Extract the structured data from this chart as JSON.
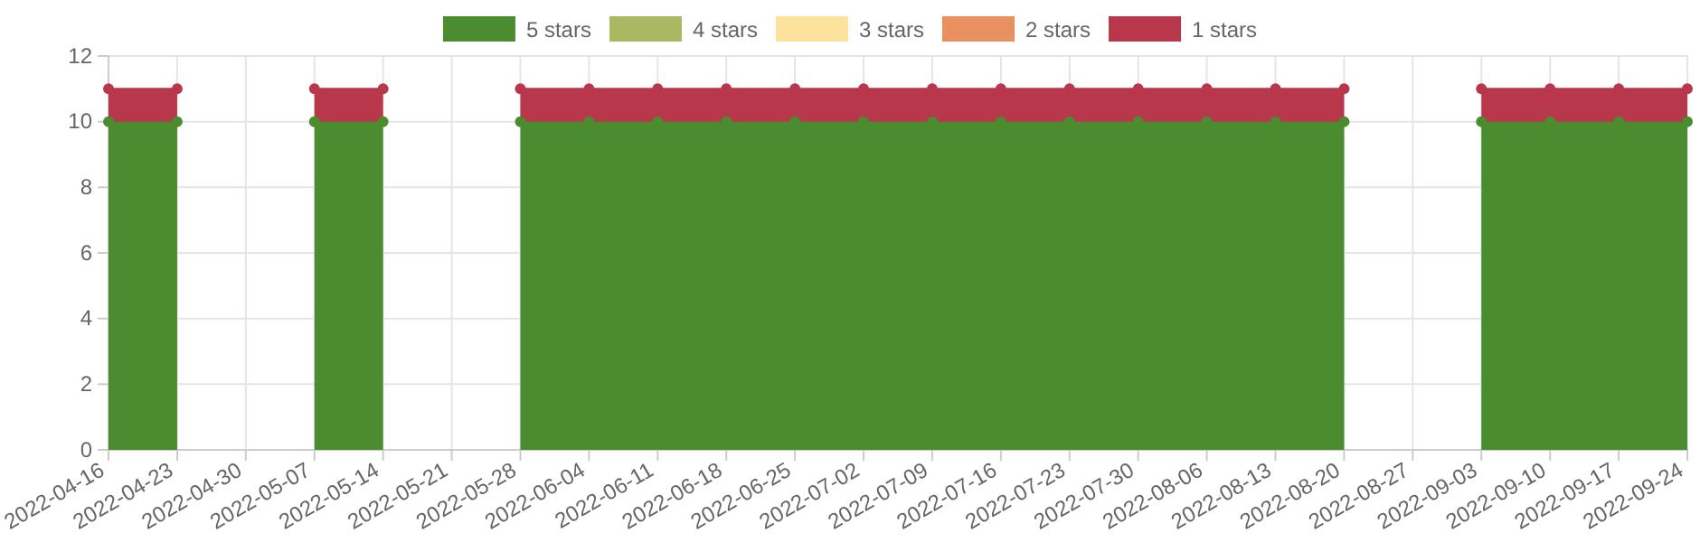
{
  "chart_data": {
    "type": "area",
    "stacked": true,
    "categories": [
      "2022-04-16",
      "2022-04-23",
      "2022-04-30",
      "2022-05-07",
      "2022-05-14",
      "2022-05-21",
      "2022-05-28",
      "2022-06-04",
      "2022-06-11",
      "2022-06-18",
      "2022-06-25",
      "2022-07-02",
      "2022-07-09",
      "2022-07-16",
      "2022-07-23",
      "2022-07-30",
      "2022-08-06",
      "2022-08-13",
      "2022-08-20",
      "2022-08-27",
      "2022-09-03",
      "2022-09-10",
      "2022-09-17",
      "2022-09-24"
    ],
    "series": [
      {
        "name": "5 stars",
        "color": "#4a8c2f",
        "values": [
          10,
          10,
          null,
          10,
          10,
          null,
          10,
          10,
          10,
          10,
          10,
          10,
          10,
          10,
          10,
          10,
          10,
          10,
          10,
          null,
          10,
          10,
          10,
          10
        ]
      },
      {
        "name": "4 stars",
        "color": "#aab862",
        "values": [
          null,
          null,
          null,
          null,
          null,
          null,
          null,
          null,
          null,
          null,
          null,
          null,
          null,
          null,
          null,
          null,
          null,
          null,
          null,
          null,
          null,
          null,
          null,
          null
        ]
      },
      {
        "name": "3 stars",
        "color": "#fde29b",
        "values": [
          null,
          null,
          null,
          null,
          null,
          null,
          null,
          null,
          null,
          null,
          null,
          null,
          null,
          null,
          null,
          null,
          null,
          null,
          null,
          null,
          null,
          null,
          null,
          null
        ]
      },
      {
        "name": "2 stars",
        "color": "#e8905f",
        "values": [
          null,
          null,
          null,
          null,
          null,
          null,
          null,
          null,
          null,
          null,
          null,
          null,
          null,
          null,
          null,
          null,
          null,
          null,
          null,
          null,
          null,
          null,
          null,
          null
        ]
      },
      {
        "name": "1 stars",
        "color": "#b9374a",
        "values": [
          1,
          1,
          null,
          1,
          1,
          null,
          1,
          1,
          1,
          1,
          1,
          1,
          1,
          1,
          1,
          1,
          1,
          1,
          1,
          null,
          1,
          1,
          1,
          1
        ]
      }
    ],
    "ylim": [
      0,
      12
    ],
    "yticks": [
      0,
      2,
      4,
      6,
      8,
      10,
      12
    ],
    "grid": true,
    "legend": "top",
    "marker": "circle"
  }
}
